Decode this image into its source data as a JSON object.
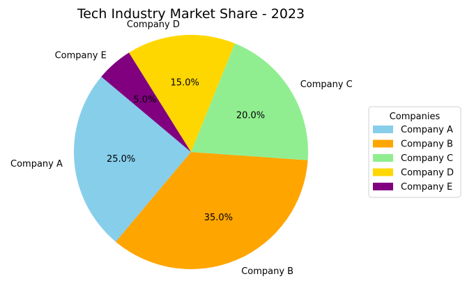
{
  "chart_data": {
    "type": "pie",
    "title": "Tech Industry Market Share - 2023",
    "slices": [
      {
        "label": "Company A",
        "value": 25.0,
        "pct_label": "25.0%",
        "color": "#87CEEB"
      },
      {
        "label": "Company B",
        "value": 35.0,
        "pct_label": "35.0%",
        "color": "#FFA500"
      },
      {
        "label": "Company C",
        "value": 20.0,
        "pct_label": "20.0%",
        "color": "#90EE90"
      },
      {
        "label": "Company D",
        "value": 15.0,
        "pct_label": "15.0%",
        "color": "#FFD700"
      },
      {
        "label": "Company E",
        "value": 5.0,
        "pct_label": "5.0%",
        "color": "#800080"
      }
    ],
    "start_angle_deg": 140,
    "direction": "counterclockwise",
    "legend": {
      "title": "Companies",
      "position": "right"
    }
  }
}
